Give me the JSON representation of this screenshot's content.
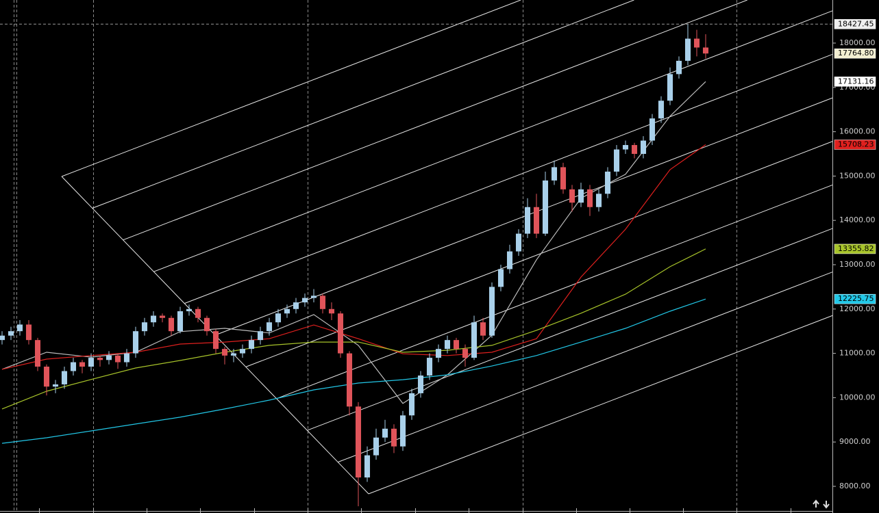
{
  "chart_data": {
    "type": "candlestick",
    "open": [
      11300,
      11400,
      11500,
      11650,
      11300,
      10700,
      10250,
      10300,
      10600,
      10800,
      10700,
      10900,
      10850,
      10950,
      10800,
      11000,
      11500,
      11700,
      11850,
      11800,
      11500,
      11950,
      12000,
      11800,
      11500,
      11100,
      10950,
      11000,
      11100,
      11300,
      11500,
      11700,
      11900,
      12000,
      12150,
      12250,
      12300,
      12000,
      11900,
      11000,
      9800,
      8200,
      8700,
      9100,
      9300,
      8900,
      9600,
      10100,
      10500,
      10900,
      11100,
      11300,
      11100,
      10900,
      11700,
      11400,
      12500,
      12900,
      13300,
      13700,
      14300,
      13700,
      14900,
      15200,
      14700,
      14400,
      14700,
      14300,
      14600,
      15100,
      15600,
      15700,
      15500,
      15800,
      16300,
      16700,
      17300,
      17600,
      18100,
      17900
    ],
    "high": [
      11500,
      11600,
      11750,
      11750,
      11350,
      10750,
      10400,
      10700,
      10900,
      10850,
      11000,
      10950,
      11050,
      11000,
      11100,
      11600,
      11800,
      11950,
      11900,
      11850,
      12050,
      12100,
      12050,
      11850,
      11550,
      11150,
      11100,
      11200,
      11400,
      11600,
      11800,
      12000,
      12100,
      12250,
      12350,
      12450,
      12350,
      12150,
      11950,
      11050,
      9900,
      8900,
      9300,
      9500,
      9400,
      9700,
      10200,
      10600,
      11000,
      11200,
      11400,
      11350,
      11200,
      11850,
      11800,
      12600,
      13000,
      13450,
      13800,
      14500,
      14600,
      15100,
      15350,
      15300,
      14800,
      14850,
      14800,
      14700,
      15200,
      15700,
      15800,
      15750,
      15900,
      16400,
      16800,
      17450,
      17700,
      18427.45,
      18300,
      18200
    ],
    "low": [
      11200,
      11300,
      11400,
      11200,
      10600,
      10050,
      10100,
      10200,
      10500,
      10550,
      10600,
      10700,
      10750,
      10650,
      10700,
      10900,
      11400,
      11600,
      11700,
      11400,
      11450,
      11850,
      11700,
      11400,
      11000,
      10750,
      10800,
      10900,
      11000,
      11200,
      11400,
      11600,
      11800,
      11900,
      12050,
      12150,
      11900,
      11750,
      10900,
      9600,
      7550,
      8100,
      8600,
      9000,
      8750,
      8800,
      9500,
      10000,
      10400,
      10800,
      11000,
      11000,
      10700,
      10850,
      11300,
      11350,
      12400,
      12800,
      13200,
      13600,
      13600,
      13650,
      14800,
      14600,
      14200,
      14300,
      14100,
      14200,
      14500,
      15000,
      15500,
      15400,
      15400,
      15700,
      16200,
      16600,
      17200,
      17500,
      17700,
      17650
    ],
    "close": [
      11400,
      11500,
      11650,
      11300,
      10700,
      10250,
      10300,
      10600,
      10800,
      10700,
      10900,
      10850,
      10950,
      10800,
      11000,
      11500,
      11700,
      11850,
      11800,
      11500,
      11950,
      12000,
      11800,
      11500,
      11100,
      10950,
      11000,
      11100,
      11300,
      11500,
      11700,
      11900,
      12000,
      12150,
      12250,
      12300,
      12000,
      11900,
      11000,
      9800,
      8200,
      8700,
      9100,
      9300,
      8900,
      9600,
      10100,
      10500,
      10900,
      11100,
      11300,
      11100,
      10900,
      11700,
      11400,
      12500,
      12900,
      13300,
      13700,
      14300,
      13700,
      14900,
      15200,
      14700,
      14400,
      14700,
      14300,
      14600,
      15100,
      15600,
      15700,
      15500,
      15800,
      16300,
      16700,
      17300,
      17600,
      18100,
      17900,
      17764.8
    ],
    "close_label": "17764.80",
    "up_color": "#a9d0ea",
    "down_color": "#e0545a",
    "series": [
      {
        "color": "#bdbdbd",
        "x": [
          0,
          5,
          10,
          15,
          20,
          25,
          30,
          35,
          40,
          45,
          50,
          55,
          60,
          65,
          70,
          75,
          79
        ],
        "values": [
          10640,
          11025,
          10915,
          11025,
          11490,
          11565,
          11460,
          11875,
          11180,
          9870,
          10515,
          11410,
          13110,
          14500,
          15040,
          16350,
          17131.16
        ]
      },
      {
        "color": "#e0201e",
        "x": [
          0,
          5,
          10,
          15,
          20,
          25,
          30,
          35,
          40,
          45,
          50,
          55,
          60,
          65,
          70,
          75,
          79
        ],
        "values": [
          10640,
          10870,
          10950,
          11025,
          11210,
          11255,
          11330,
          11640,
          11330,
          10990,
          10950,
          11025,
          11330,
          12720,
          13800,
          15145,
          15708.23
        ]
      },
      {
        "color": "#a8c42a",
        "x": [
          0,
          5,
          10,
          15,
          20,
          25,
          30,
          35,
          40,
          45,
          50,
          55,
          60,
          65,
          70,
          75,
          79
        ],
        "values": [
          9745,
          10145,
          10410,
          10670,
          10840,
          11025,
          11180,
          11255,
          11255,
          11025,
          11070,
          11180,
          11520,
          11905,
          12335,
          12955,
          13355.82
        ]
      },
      {
        "color": "#22c8e8",
        "x": [
          0,
          5,
          10,
          15,
          20,
          25,
          30,
          35,
          40,
          45,
          50,
          55,
          60,
          65,
          70,
          75,
          79
        ],
        "values": [
          8970,
          9095,
          9250,
          9405,
          9560,
          9745,
          9945,
          10175,
          10330,
          10405,
          10515,
          10715,
          10950,
          11255,
          11565,
          11950,
          12225.75
        ]
      }
    ],
    "xlim": [
      -0.23,
      93.23
    ],
    "ylim": [
      7398,
      18972
    ],
    "yticks": [
      {
        "value": 8000,
        "label": "8000.00"
      },
      {
        "value": 9000,
        "label": "9000.00"
      },
      {
        "value": 10000,
        "label": "10000.00"
      },
      {
        "value": 11000,
        "label": "11000.00"
      },
      {
        "value": 12000,
        "label": "12000.00"
      },
      {
        "value": 13000,
        "label": "13000.00"
      },
      {
        "value": 14000,
        "label": "14000.00"
      },
      {
        "value": 15000,
        "label": "15000.00"
      },
      {
        "value": 16000,
        "label": "16000.00"
      },
      {
        "value": 17000,
        "label": "17000.00"
      },
      {
        "value": 18000,
        "label": "18000.00"
      }
    ]
  }
}
